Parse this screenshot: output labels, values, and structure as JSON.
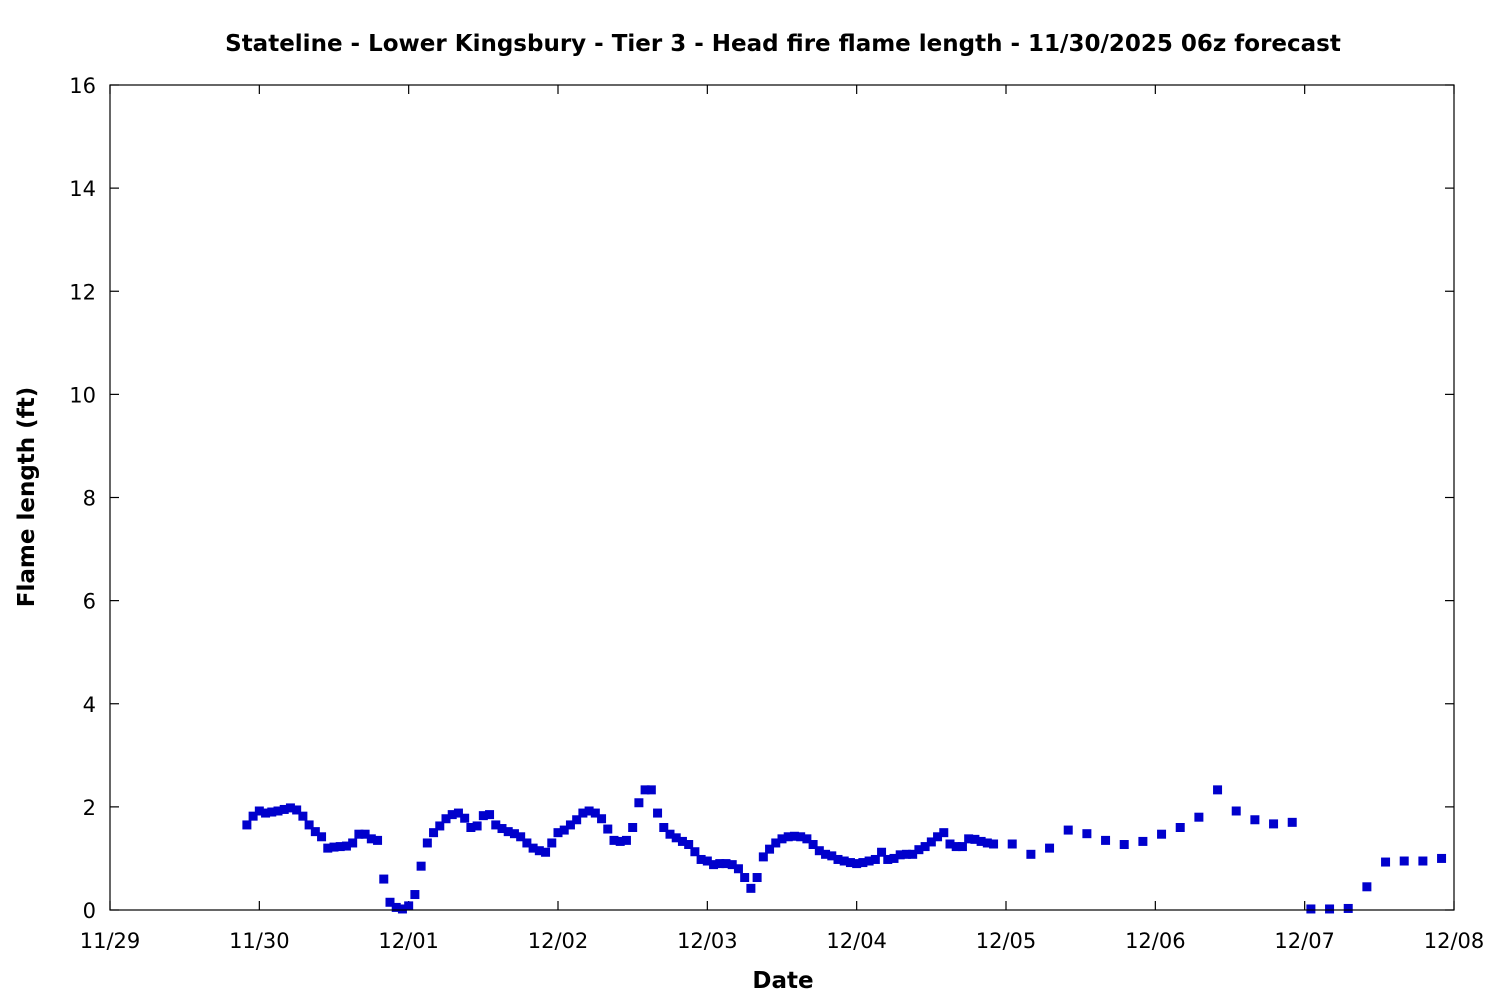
{
  "chart_data": {
    "type": "scatter",
    "title": "Stateline - Lower Kingsbury - Tier 3 - Head fire flame length - 11/30/2025 06z forecast",
    "xlabel": "Date",
    "ylabel": "Flame length (ft)",
    "xlim": [
      "2025-11-29T00:00",
      "2025-12-08T00:00"
    ],
    "ylim": [
      0,
      16
    ],
    "x_ticks": [
      "11/29",
      "11/30",
      "12/01",
      "12/02",
      "12/03",
      "12/04",
      "12/05",
      "12/06",
      "12/07",
      "12/08"
    ],
    "y_ticks": [
      0,
      2,
      4,
      6,
      8,
      10,
      12,
      14,
      16
    ],
    "grid": false,
    "legend": false,
    "marker_color": "#0000cc",
    "series": [
      {
        "points": [
          [
            "2025-11-29T22:00",
            1.65
          ],
          [
            "2025-11-29T23:00",
            1.82
          ],
          [
            "2025-11-30T00:00",
            1.92
          ],
          [
            "2025-11-30T01:00",
            1.88
          ],
          [
            "2025-11-30T02:00",
            1.9
          ],
          [
            "2025-11-30T03:00",
            1.92
          ],
          [
            "2025-11-30T04:00",
            1.95
          ],
          [
            "2025-11-30T05:00",
            1.98
          ],
          [
            "2025-11-30T06:00",
            1.94
          ],
          [
            "2025-11-30T07:00",
            1.82
          ],
          [
            "2025-11-30T08:00",
            1.65
          ],
          [
            "2025-11-30T09:00",
            1.52
          ],
          [
            "2025-11-30T10:00",
            1.42
          ],
          [
            "2025-11-30T11:00",
            1.2
          ],
          [
            "2025-11-30T12:00",
            1.22
          ],
          [
            "2025-11-30T13:00",
            1.23
          ],
          [
            "2025-11-30T14:00",
            1.24
          ],
          [
            "2025-11-30T15:00",
            1.3
          ],
          [
            "2025-11-30T16:00",
            1.47
          ],
          [
            "2025-11-30T17:00",
            1.47
          ],
          [
            "2025-11-30T18:00",
            1.38
          ],
          [
            "2025-11-30T19:00",
            1.35
          ],
          [
            "2025-11-30T20:00",
            0.6
          ],
          [
            "2025-11-30T21:00",
            0.15
          ],
          [
            "2025-11-30T22:00",
            0.05
          ],
          [
            "2025-11-30T23:00",
            0.02
          ],
          [
            "2025-12-01T00:00",
            0.08
          ],
          [
            "2025-12-01T01:00",
            0.3
          ],
          [
            "2025-12-01T02:00",
            0.85
          ],
          [
            "2025-12-01T03:00",
            1.3
          ],
          [
            "2025-12-01T04:00",
            1.5
          ],
          [
            "2025-12-01T05:00",
            1.63
          ],
          [
            "2025-12-01T06:00",
            1.77
          ],
          [
            "2025-12-01T07:00",
            1.85
          ],
          [
            "2025-12-01T08:00",
            1.88
          ],
          [
            "2025-12-01T09:00",
            1.78
          ],
          [
            "2025-12-01T10:00",
            1.6
          ],
          [
            "2025-12-01T11:00",
            1.63
          ],
          [
            "2025-12-01T12:00",
            1.83
          ],
          [
            "2025-12-01T13:00",
            1.85
          ],
          [
            "2025-12-01T14:00",
            1.65
          ],
          [
            "2025-12-01T15:00",
            1.58
          ],
          [
            "2025-12-01T16:00",
            1.52
          ],
          [
            "2025-12-01T17:00",
            1.48
          ],
          [
            "2025-12-01T18:00",
            1.42
          ],
          [
            "2025-12-01T19:00",
            1.3
          ],
          [
            "2025-12-01T20:00",
            1.2
          ],
          [
            "2025-12-01T21:00",
            1.15
          ],
          [
            "2025-12-01T22:00",
            1.12
          ],
          [
            "2025-12-01T23:00",
            1.3
          ],
          [
            "2025-12-02T00:00",
            1.5
          ],
          [
            "2025-12-02T01:00",
            1.55
          ],
          [
            "2025-12-02T02:00",
            1.65
          ],
          [
            "2025-12-02T03:00",
            1.75
          ],
          [
            "2025-12-02T04:00",
            1.88
          ],
          [
            "2025-12-02T05:00",
            1.92
          ],
          [
            "2025-12-02T06:00",
            1.88
          ],
          [
            "2025-12-02T07:00",
            1.77
          ],
          [
            "2025-12-02T08:00",
            1.57
          ],
          [
            "2025-12-02T09:00",
            1.35
          ],
          [
            "2025-12-02T10:00",
            1.33
          ],
          [
            "2025-12-02T11:00",
            1.35
          ],
          [
            "2025-12-02T12:00",
            1.6
          ],
          [
            "2025-12-02T13:00",
            2.08
          ],
          [
            "2025-12-02T14:00",
            2.33
          ],
          [
            "2025-12-02T15:00",
            2.33
          ],
          [
            "2025-12-02T16:00",
            1.88
          ],
          [
            "2025-12-02T17:00",
            1.6
          ],
          [
            "2025-12-02T18:00",
            1.47
          ],
          [
            "2025-12-02T19:00",
            1.4
          ],
          [
            "2025-12-02T20:00",
            1.33
          ],
          [
            "2025-12-02T21:00",
            1.27
          ],
          [
            "2025-12-02T22:00",
            1.13
          ],
          [
            "2025-12-02T23:00",
            0.98
          ],
          [
            "2025-12-03T00:00",
            0.95
          ],
          [
            "2025-12-03T01:00",
            0.88
          ],
          [
            "2025-12-03T02:00",
            0.9
          ],
          [
            "2025-12-03T03:00",
            0.9
          ],
          [
            "2025-12-03T04:00",
            0.88
          ],
          [
            "2025-12-03T05:00",
            0.8
          ],
          [
            "2025-12-03T06:00",
            0.63
          ],
          [
            "2025-12-03T07:00",
            0.42
          ],
          [
            "2025-12-03T08:00",
            0.63
          ],
          [
            "2025-12-03T09:00",
            1.03
          ],
          [
            "2025-12-03T10:00",
            1.18
          ],
          [
            "2025-12-03T11:00",
            1.3
          ],
          [
            "2025-12-03T12:00",
            1.38
          ],
          [
            "2025-12-03T13:00",
            1.42
          ],
          [
            "2025-12-03T14:00",
            1.43
          ],
          [
            "2025-12-03T15:00",
            1.42
          ],
          [
            "2025-12-03T16:00",
            1.38
          ],
          [
            "2025-12-03T17:00",
            1.27
          ],
          [
            "2025-12-03T18:00",
            1.15
          ],
          [
            "2025-12-03T19:00",
            1.08
          ],
          [
            "2025-12-03T20:00",
            1.05
          ],
          [
            "2025-12-03T21:00",
            0.98
          ],
          [
            "2025-12-03T22:00",
            0.95
          ],
          [
            "2025-12-03T23:00",
            0.92
          ],
          [
            "2025-12-04T00:00",
            0.9
          ],
          [
            "2025-12-04T01:00",
            0.92
          ],
          [
            "2025-12-04T02:00",
            0.95
          ],
          [
            "2025-12-04T03:00",
            0.98
          ],
          [
            "2025-12-04T04:00",
            1.12
          ],
          [
            "2025-12-04T05:00",
            0.98
          ],
          [
            "2025-12-04T06:00",
            1.0
          ],
          [
            "2025-12-04T07:00",
            1.07
          ],
          [
            "2025-12-04T08:00",
            1.08
          ],
          [
            "2025-12-04T09:00",
            1.08
          ],
          [
            "2025-12-04T10:00",
            1.17
          ],
          [
            "2025-12-04T11:00",
            1.23
          ],
          [
            "2025-12-04T12:00",
            1.32
          ],
          [
            "2025-12-04T13:00",
            1.42
          ],
          [
            "2025-12-04T14:00",
            1.5
          ],
          [
            "2025-12-04T15:00",
            1.28
          ],
          [
            "2025-12-04T16:00",
            1.23
          ],
          [
            "2025-12-04T17:00",
            1.23
          ],
          [
            "2025-12-04T18:00",
            1.38
          ],
          [
            "2025-12-04T19:00",
            1.37
          ],
          [
            "2025-12-04T20:00",
            1.33
          ],
          [
            "2025-12-04T21:00",
            1.3
          ],
          [
            "2025-12-04T22:00",
            1.28
          ],
          [
            "2025-12-05T01:00",
            1.28
          ],
          [
            "2025-12-05T04:00",
            1.08
          ],
          [
            "2025-12-05T07:00",
            1.2
          ],
          [
            "2025-12-05T10:00",
            1.55
          ],
          [
            "2025-12-05T13:00",
            1.48
          ],
          [
            "2025-12-05T16:00",
            1.35
          ],
          [
            "2025-12-05T19:00",
            1.27
          ],
          [
            "2025-12-05T22:00",
            1.33
          ],
          [
            "2025-12-06T01:00",
            1.47
          ],
          [
            "2025-12-06T04:00",
            1.6
          ],
          [
            "2025-12-06T07:00",
            1.8
          ],
          [
            "2025-12-06T10:00",
            2.33
          ],
          [
            "2025-12-06T13:00",
            1.92
          ],
          [
            "2025-12-06T16:00",
            1.75
          ],
          [
            "2025-12-06T19:00",
            1.67
          ],
          [
            "2025-12-06T22:00",
            1.7
          ],
          [
            "2025-12-07T01:00",
            0.02
          ],
          [
            "2025-12-07T04:00",
            0.02
          ],
          [
            "2025-12-07T07:00",
            0.03
          ],
          [
            "2025-12-07T10:00",
            0.45
          ],
          [
            "2025-12-07T13:00",
            0.93
          ],
          [
            "2025-12-07T16:00",
            0.95
          ],
          [
            "2025-12-07T19:00",
            0.95
          ],
          [
            "2025-12-07T22:00",
            1.0
          ]
        ]
      }
    ]
  }
}
